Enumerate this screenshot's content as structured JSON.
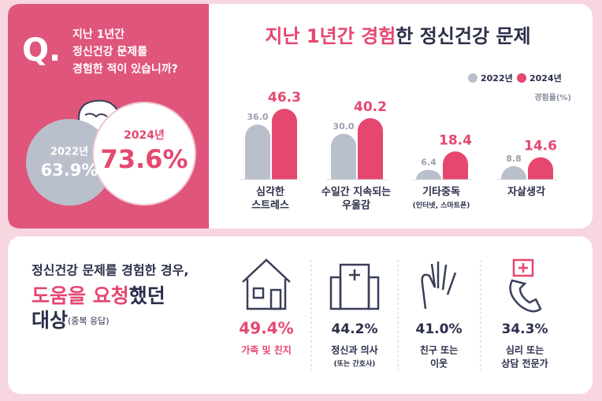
{
  "question": {
    "mark": "Q.",
    "lines": [
      "지난 1년간",
      "정신건강 문제를",
      "경험한 적이 있습니까?"
    ]
  },
  "overall": [
    {
      "year": "2022년",
      "value": "63.9%"
    },
    {
      "year": "2024년",
      "value": "73.6%"
    }
  ],
  "chart_data": {
    "type": "bar",
    "title": [
      "지난 1년간 경험",
      "한 정신건강 문제"
    ],
    "unit_note": "경험율(%)",
    "categories": [
      [
        "심각한",
        "스트레스"
      ],
      [
        "수일간 지속되는",
        "우울감"
      ],
      [
        "기타중독",
        "(인터넷, 스마트폰)"
      ],
      [
        "자살생각"
      ]
    ],
    "series": [
      {
        "name": "2022년",
        "color": "#b9bfcb",
        "values": [
          36.0,
          30.0,
          6.4,
          8.8
        ],
        "value_labels": [
          "36.0",
          "30.0",
          "6.4",
          "8.8"
        ]
      },
      {
        "name": "2024년",
        "color": "#e5476f",
        "values": [
          46.3,
          40.2,
          18.4,
          14.6
        ]
      }
    ],
    "ylim": [
      0,
      50
    ]
  },
  "help": {
    "title": {
      "line1": "정신건강 문제를 경험한 경우,",
      "line2": [
        "도움을 요청",
        "했던"
      ],
      "line3": [
        "대상",
        "(중복 응답)"
      ]
    },
    "items": [
      {
        "value": "49.4%",
        "label": [
          "가족 및 친지"
        ]
      },
      {
        "value": "44.2%",
        "label": [
          "정신과 의사",
          "(또는 간호사)"
        ]
      },
      {
        "value": "41.0%",
        "label": [
          "친구 또는",
          "이웃"
        ]
      },
      {
        "value": "34.3%",
        "label": [
          "심리 또는",
          "상담 전문가"
        ]
      }
    ]
  }
}
